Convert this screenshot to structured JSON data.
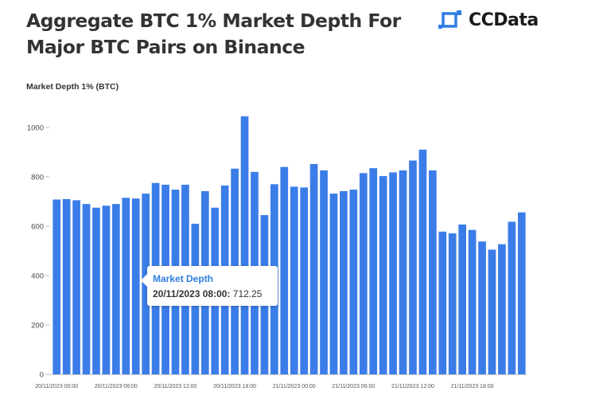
{
  "header": {
    "title": "Aggregate BTC 1% Market Depth For Major BTC Pairs on Binance",
    "logo_text": "CCData"
  },
  "tooltip": {
    "series": "Market Depth",
    "label": "20/11/2023 08:00:",
    "value": "712.25"
  },
  "colors": {
    "bar": "#3b7de8",
    "text": "#333333",
    "tooltip_title": "#2f7de1"
  },
  "chart_data": {
    "type": "bar",
    "ylabel": "Market Depth 1% (BTC)",
    "xlabel": "",
    "ylim": [
      0,
      1100
    ],
    "yticks": [
      0,
      200,
      400,
      600,
      800,
      1000
    ],
    "grid": false,
    "xtick_labels": [
      "20/11/2023 00:00",
      "20/11/2023 06:00",
      "20/11/2023 12:00",
      "20/11/2023 18:00",
      "21/11/2023 00:00",
      "21/11/2023 06:00",
      "21/11/2023 12:00",
      "21/11/2023 18:00"
    ],
    "categories": [
      "20/11/2023 00:00",
      "20/11/2023 01:00",
      "20/11/2023 02:00",
      "20/11/2023 03:00",
      "20/11/2023 04:00",
      "20/11/2023 05:00",
      "20/11/2023 06:00",
      "20/11/2023 07:00",
      "20/11/2023 08:00",
      "20/11/2023 09:00",
      "20/11/2023 10:00",
      "20/11/2023 11:00",
      "20/11/2023 12:00",
      "20/11/2023 13:00",
      "20/11/2023 14:00",
      "20/11/2023 15:00",
      "20/11/2023 16:00",
      "20/11/2023 17:00",
      "20/11/2023 18:00",
      "20/11/2023 19:00",
      "20/11/2023 20:00",
      "20/11/2023 21:00",
      "20/11/2023 22:00",
      "20/11/2023 23:00",
      "21/11/2023 00:00",
      "21/11/2023 01:00",
      "21/11/2023 02:00",
      "21/11/2023 03:00",
      "21/11/2023 04:00",
      "21/11/2023 05:00",
      "21/11/2023 06:00",
      "21/11/2023 07:00",
      "21/11/2023 08:00",
      "21/11/2023 09:00",
      "21/11/2023 10:00",
      "21/11/2023 11:00",
      "21/11/2023 12:00",
      "21/11/2023 13:00",
      "21/11/2023 14:00",
      "21/11/2023 15:00",
      "21/11/2023 16:00",
      "21/11/2023 17:00",
      "21/11/2023 18:00",
      "21/11/2023 19:00",
      "21/11/2023 20:00",
      "21/11/2023 21:00",
      "21/11/2023 22:00",
      "21/11/2023 23:00"
    ],
    "series": [
      {
        "name": "Market Depth",
        "values": [
          708,
          710,
          705,
          690,
          675,
          683,
          690,
          715,
          712.25,
          732,
          775,
          768,
          748,
          768,
          610,
          742,
          675,
          765,
          833,
          1045,
          820,
          645,
          770,
          840,
          760,
          757,
          852,
          826,
          732,
          742,
          748,
          815,
          835,
          803,
          818,
          826,
          866,
          910,
          826,
          578,
          571,
          607,
          585,
          538,
          505,
          527,
          618,
          656
        ]
      }
    ]
  }
}
